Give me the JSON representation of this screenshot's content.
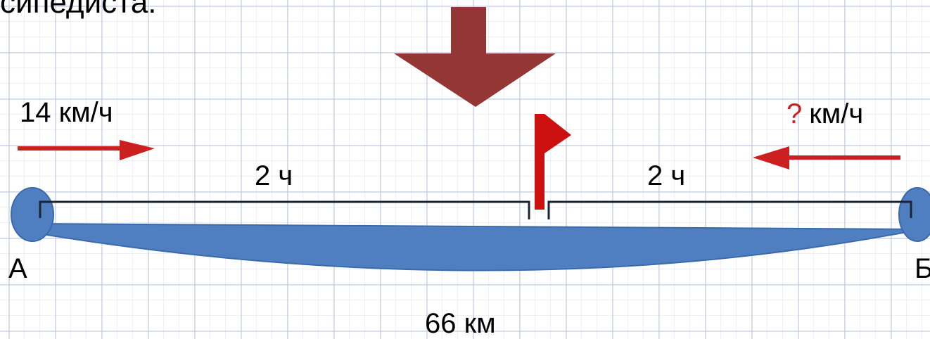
{
  "heading": "сипедиста.",
  "left_cyclist": {
    "speed_label": "14 км/ч",
    "time_label": "2 ч"
  },
  "right_cyclist": {
    "speed_unknown": "?",
    "speed_unit": "км/ч",
    "time_label": "2 ч"
  },
  "points": {
    "start": "А",
    "end": "Б"
  },
  "distance_label": "66 км",
  "colors": {
    "road_fill": "#4f7fc0",
    "road_stroke": "#3a6aa8",
    "motion_arrow": "#cc1f1f",
    "meeting_flag": "#cc1010",
    "pointer_arrow": "#943634",
    "segment_bracket": "#1a2433",
    "question_mark": "#cc1f1f"
  }
}
